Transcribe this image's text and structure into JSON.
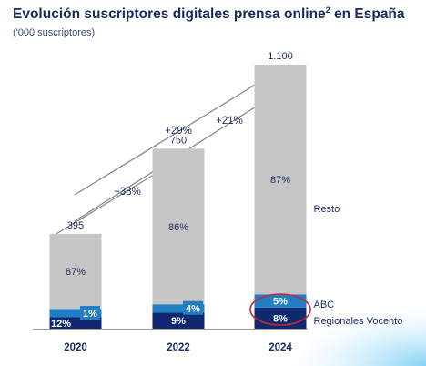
{
  "title": "Evolución suscriptores digitales prensa online",
  "title_superscript": "2",
  "title_suffix": " en España",
  "subtitle": "('000 suscriptores)",
  "chart_data": {
    "type": "bar",
    "stacked": true,
    "categories": [
      "2020",
      "2022",
      "2024"
    ],
    "totals": [
      "395",
      "750",
      "1.100"
    ],
    "totals_values": [
      395,
      750,
      1100
    ],
    "series": [
      {
        "name": "Regionales Vocento",
        "share_labels": [
          "12%",
          "9%",
          "8%"
        ],
        "shares": [
          12,
          9,
          8
        ],
        "color": "#0f2870"
      },
      {
        "name": "ABC",
        "share_labels": [
          "1%",
          "4%",
          "5%"
        ],
        "shares": [
          1,
          4,
          5
        ],
        "color": "#1f7fc2"
      },
      {
        "name": "Resto",
        "share_labels": [
          "87%",
          "86%",
          "87%"
        ],
        "shares": [
          87,
          86,
          87
        ],
        "color": "#c6c6c6"
      }
    ],
    "growth": [
      {
        "from": "2020",
        "to": "2022",
        "label": "+38%"
      },
      {
        "from": "2022",
        "to": "2024",
        "label": "+21%"
      },
      {
        "from": "2020",
        "to": "2024",
        "label": "+29%"
      }
    ],
    "highlight": {
      "category": "2024",
      "series": [
        "ABC",
        "Regionales Vocento"
      ],
      "color": "#c0283a"
    },
    "legend_position": "right"
  }
}
